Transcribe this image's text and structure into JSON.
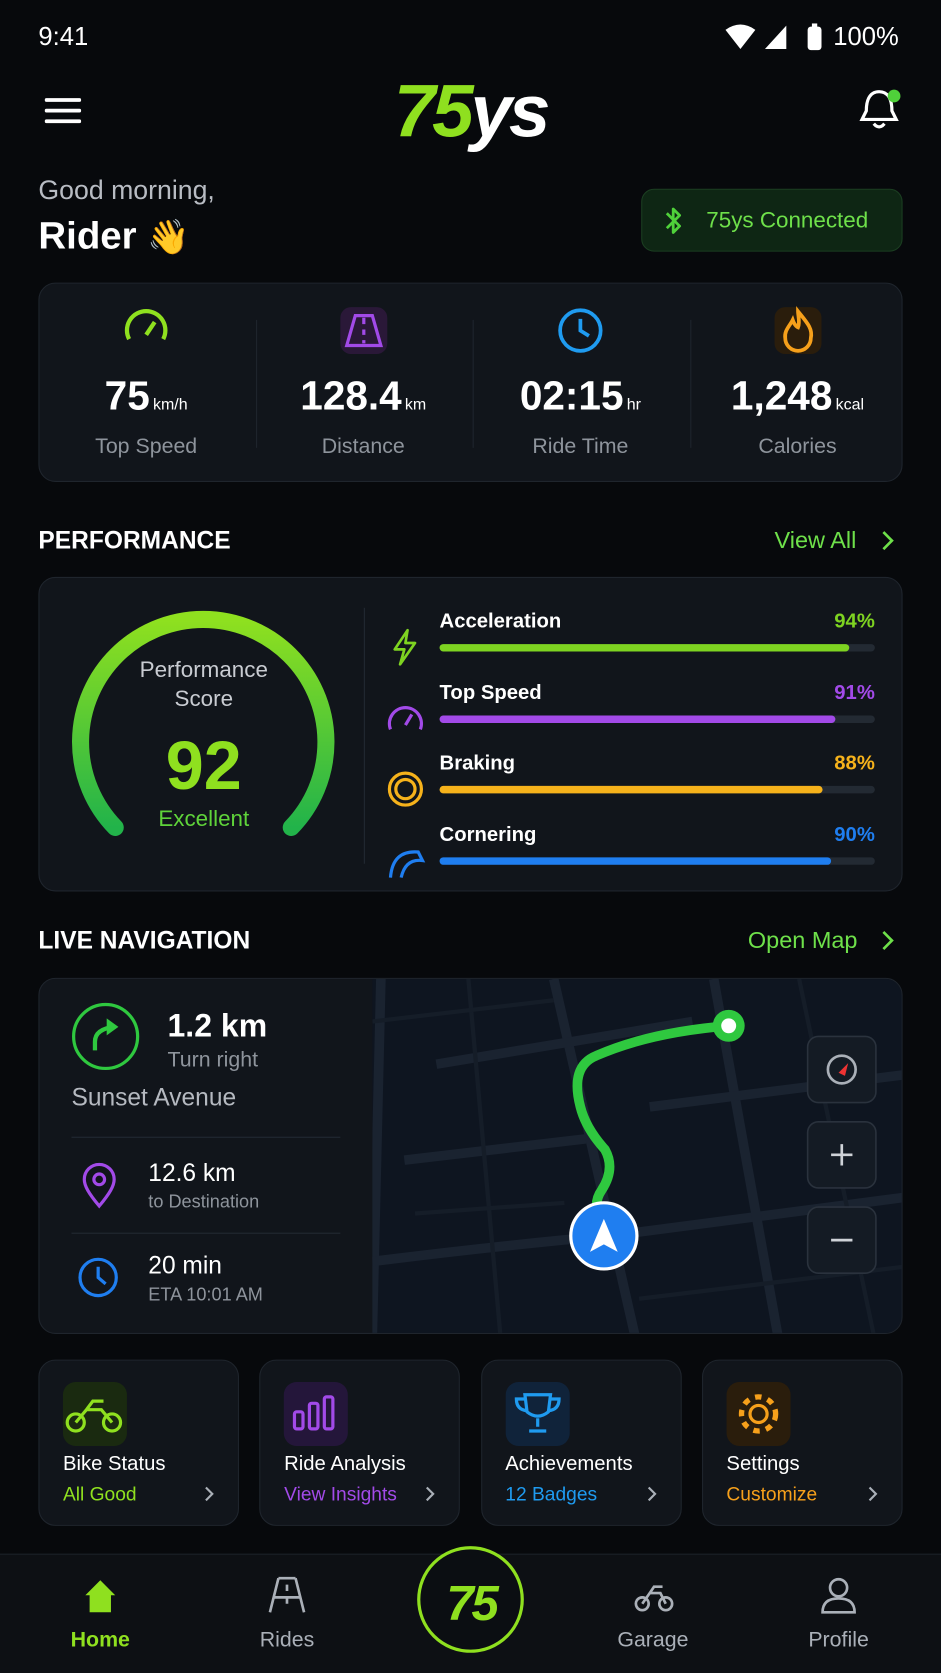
{
  "status_bar": {
    "time": "9:41",
    "battery": "100%"
  },
  "header": {
    "logo": {
      "accent": "75",
      "rest": "ys"
    }
  },
  "greeting": {
    "line": "Good morning,",
    "name": "Rider",
    "emoji": "👋"
  },
  "connection": {
    "label": "75ys Connected"
  },
  "stats": [
    {
      "value": "75",
      "unit": "km/h",
      "label": "Top Speed"
    },
    {
      "value": "128.4",
      "unit": "km",
      "label": "Distance"
    },
    {
      "value": "02:15",
      "unit": "hr",
      "label": "Ride Time"
    },
    {
      "value": "1,248",
      "unit": "kcal",
      "label": "Calories"
    }
  ],
  "performance": {
    "title": "PERFORMANCE",
    "link": "View All",
    "score_label": "Performance Score",
    "score": 92,
    "rating": "Excellent",
    "metrics": [
      {
        "name": "Acceleration",
        "percent": 94,
        "percent_label": "94%"
      },
      {
        "name": "Top Speed",
        "percent": 91,
        "percent_label": "91%"
      },
      {
        "name": "Braking",
        "percent": 88,
        "percent_label": "88%"
      },
      {
        "name": "Cornering",
        "percent": 90,
        "percent_label": "90%"
      }
    ]
  },
  "navigation": {
    "title": "LIVE NAVIGATION",
    "link": "Open Map",
    "next_distance": "1.2 km",
    "instruction": "Turn right",
    "street": "Sunset Avenue",
    "destination_distance": "12.6 km",
    "destination_label": "to Destination",
    "eta_duration": "20 min",
    "eta_label": "ETA 10:01 AM"
  },
  "quick_actions": [
    {
      "title": "Bike Status",
      "subtitle": "All Good"
    },
    {
      "title": "Ride Analysis",
      "subtitle": "View Insights"
    },
    {
      "title": "Achievements",
      "subtitle": "12 Badges"
    },
    {
      "title": "Settings",
      "subtitle": "Customize"
    }
  ],
  "bottom_nav": {
    "items": [
      "Home",
      "Rides",
      "Garage",
      "Profile"
    ],
    "center": "75"
  }
}
